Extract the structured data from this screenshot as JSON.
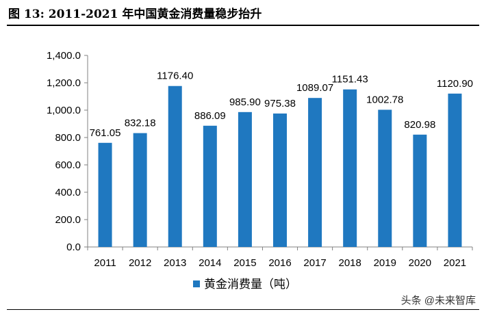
{
  "figure": {
    "title": "图 13:  2011-2021 年中国黄金消费量稳步抬升",
    "watermark": "头条 @未来智库"
  },
  "colors": {
    "bar": "#1f78c0",
    "axis": "#808080",
    "text": "#000000"
  },
  "chart_data": {
    "type": "bar",
    "categories": [
      "2011",
      "2012",
      "2013",
      "2014",
      "2015",
      "2016",
      "2017",
      "2018",
      "2019",
      "2020",
      "2021"
    ],
    "series": [
      {
        "name": "黄金消费量（吨）",
        "values": [
          761.05,
          832.18,
          1176.4,
          886.09,
          985.9,
          975.38,
          1089.07,
          1151.43,
          1002.78,
          820.98,
          1120.9
        ]
      }
    ],
    "data_labels": [
      "761.05",
      "832.18",
      "1176.40",
      "886.09",
      "985.90",
      "975.38",
      "1089.07",
      "1151.43",
      "1002.78",
      "820.98",
      "1120.90"
    ],
    "yticks": [
      "0.0",
      "200.0",
      "400.0",
      "600.0",
      "800.0",
      "1,000.0",
      "1,200.0",
      "1,400.0"
    ],
    "ylim": [
      0,
      1400
    ],
    "grid": false,
    "legend": "bottom-center"
  }
}
